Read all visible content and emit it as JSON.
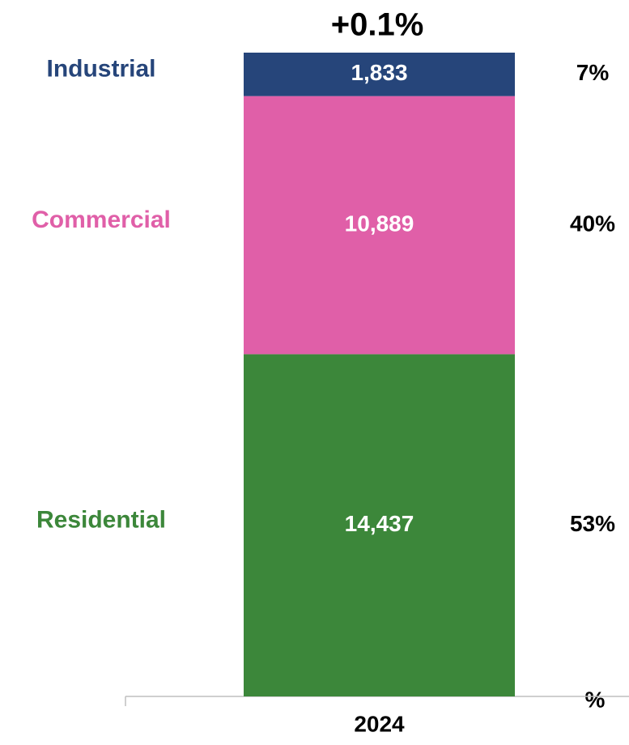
{
  "chart_data": {
    "type": "stacked_bar",
    "annotation": "+0.1%",
    "share_header": "%",
    "categories": [
      "2024"
    ],
    "series": [
      {
        "name": "Residential",
        "color": "#3c873a",
        "values": [
          14437
        ],
        "value_labels": [
          "14,437"
        ],
        "shares": [
          53
        ],
        "share_labels": [
          "53%"
        ]
      },
      {
        "name": "Commercial",
        "color": "#e05fa8",
        "values": [
          10889
        ],
        "value_labels": [
          "10,889"
        ],
        "shares": [
          40
        ],
        "share_labels": [
          "40%"
        ]
      },
      {
        "name": "Industrial",
        "color": "#26457a",
        "values": [
          1833
        ],
        "value_labels": [
          "1,833"
        ],
        "shares": [
          7
        ],
        "share_labels": [
          "7%"
        ]
      }
    ]
  }
}
